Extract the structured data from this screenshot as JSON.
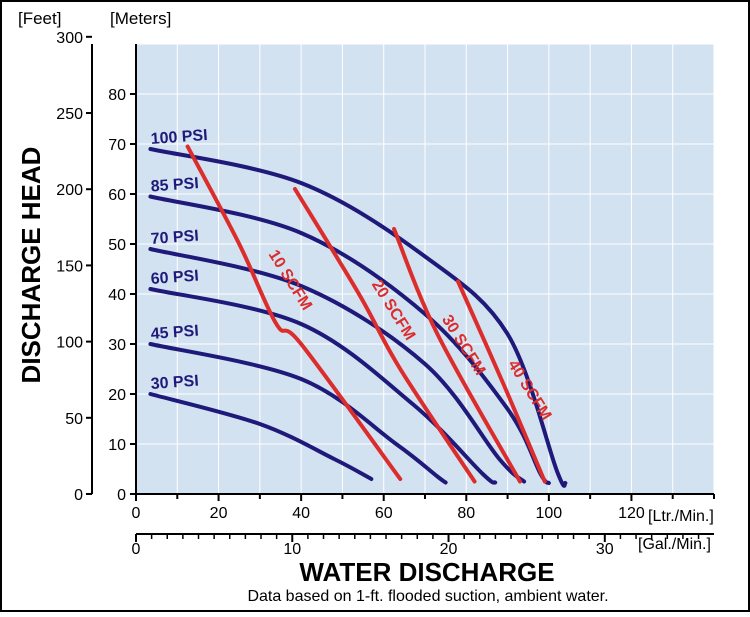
{
  "chart_data": {
    "type": "line",
    "title": "",
    "xlabel": "WATER DISCHARGE",
    "ylabel": "DISCHARGE HEAD",
    "footnote": "Data based on 1-ft. flooded suction, ambient water.",
    "x_axis_primary": {
      "unit": "[Ltr./Min.]",
      "range": [
        0,
        140
      ],
      "ticks": [
        0,
        20,
        40,
        60,
        80,
        100,
        120
      ]
    },
    "x_axis_secondary": {
      "unit": "[Gal./Min.]",
      "ticks": [
        0,
        10,
        20,
        30
      ],
      "ltr_per_gal": 3.785
    },
    "y_axis_primary": {
      "unit": "[Meters]",
      "range": [
        0,
        90
      ],
      "ticks": [
        0,
        10,
        20,
        30,
        40,
        50,
        60,
        70,
        80
      ]
    },
    "y_axis_secondary": {
      "unit": "[Feet]",
      "ticks": [
        0,
        50,
        100,
        150,
        200,
        250,
        300
      ],
      "feet_per_meter": 3.281
    },
    "grid": true,
    "colors": {
      "plot_bg": "#d3e2f1",
      "grid": "#ffffff",
      "psi": "#1f1a7a",
      "scfm": "#dc2d2d"
    },
    "psi_curves": [
      {
        "name": "100 PSI",
        "points": [
          [
            3.5,
            69
          ],
          [
            40,
            62.2
          ],
          [
            70,
            47.5
          ],
          [
            90,
            32
          ],
          [
            102,
            4.5
          ],
          [
            104,
            2.2
          ]
        ]
      },
      {
        "name": "85 PSI",
        "points": [
          [
            3.5,
            59.5
          ],
          [
            40,
            52.2
          ],
          [
            70,
            36
          ],
          [
            90,
            17
          ],
          [
            98,
            4
          ],
          [
            100,
            2.2
          ]
        ]
      },
      {
        "name": "70 PSI",
        "points": [
          [
            3.5,
            49
          ],
          [
            40,
            41.6
          ],
          [
            70,
            26
          ],
          [
            88,
            7
          ],
          [
            94,
            2.5
          ]
        ]
      },
      {
        "name": "60 PSI",
        "points": [
          [
            3.5,
            41
          ],
          [
            40,
            34
          ],
          [
            67,
            18
          ],
          [
            84,
            4
          ],
          [
            87,
            2.3
          ]
        ]
      },
      {
        "name": "45 PSI",
        "points": [
          [
            3.5,
            30
          ],
          [
            40,
            23
          ],
          [
            63,
            10
          ],
          [
            73,
            3.5
          ],
          [
            75,
            2.3
          ]
        ]
      },
      {
        "name": "30 PSI",
        "points": [
          [
            3.5,
            20
          ],
          [
            30,
            14
          ],
          [
            48,
            7
          ],
          [
            57,
            3
          ]
        ]
      }
    ],
    "scfm_lines": [
      {
        "name": "10 SCFM",
        "points": [
          [
            12.5,
            69.5
          ],
          [
            25,
            50
          ],
          [
            34,
            34
          ],
          [
            40,
            30
          ],
          [
            64,
            3
          ]
        ],
        "label_x": 32,
        "label_y": 48
      },
      {
        "name": "20 SCFM",
        "points": [
          [
            38.5,
            61
          ],
          [
            54,
            40
          ],
          [
            64,
            25
          ],
          [
            82,
            2.5
          ]
        ],
        "label_x": 57,
        "label_y": 42
      },
      {
        "name": "30 SCFM",
        "points": [
          [
            62.5,
            53
          ],
          [
            73,
            32
          ],
          [
            93,
            2.5
          ]
        ],
        "label_x": 74,
        "label_y": 35
      },
      {
        "name": "40 SCFM",
        "points": [
          [
            78,
            42.5
          ],
          [
            89,
            22
          ],
          [
            99,
            2.5
          ]
        ],
        "label_x": 90,
        "label_y": 26
      }
    ]
  }
}
